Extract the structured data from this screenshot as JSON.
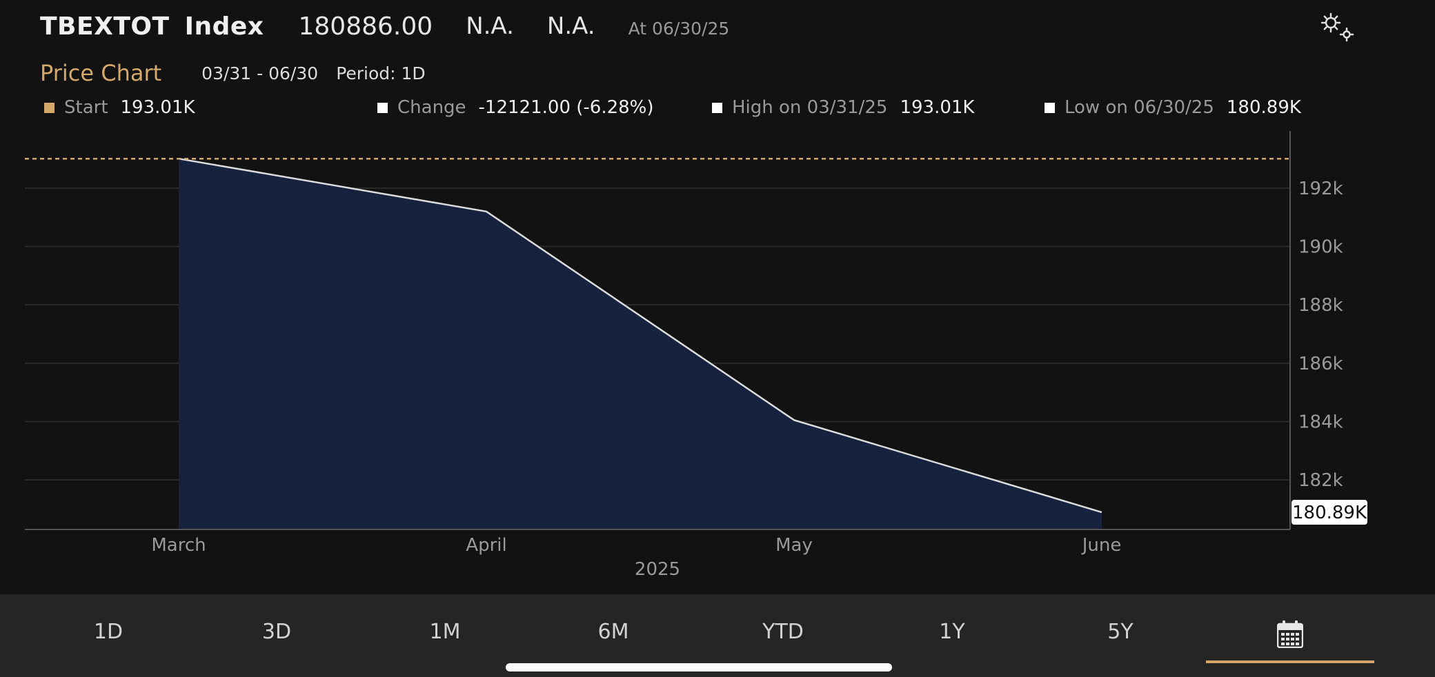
{
  "header": {
    "ticker": "TBEXTOT",
    "ticker_type": "Index",
    "price": "180886.00",
    "change": "N.A.",
    "change_pct": "N.A.",
    "as_of": "At 06/30/25"
  },
  "subheader": {
    "title": "Price Chart",
    "date_range": "03/31 - 06/30",
    "period": "Period: 1D"
  },
  "legend": {
    "start_label": "Start",
    "start_value": "193.01K",
    "change_label": "Change",
    "change_value": "-12121.00 (-6.28%)",
    "high_label": "High on 03/31/25",
    "high_value": "193.01K",
    "low_label": "Low on 06/30/25",
    "low_value": "180.89K"
  },
  "colors": {
    "accent": "#d4a86a",
    "area_fill": "#17223f",
    "line": "#dcdcdc",
    "background": "#121212",
    "tab_bar": "#252525"
  },
  "chart_data": {
    "type": "area",
    "x": [
      "March",
      "April",
      "May",
      "June"
    ],
    "y": [
      193.01,
      191.2,
      184.05,
      180.89
    ],
    "units": "K",
    "y_ticks": [
      "192k",
      "190k",
      "188k",
      "186k",
      "184k",
      "182k"
    ],
    "y_tick_values": [
      192,
      190,
      188,
      186,
      184,
      182
    ],
    "x_ticks": [
      "March",
      "April",
      "May",
      "June"
    ],
    "x_year_label": "2025",
    "ylim": [
      180.3,
      193.96
    ],
    "reference_line_value": 193.01,
    "last_value_label": "180.89K",
    "grid": true
  },
  "tabs": [
    {
      "label": "1D"
    },
    {
      "label": "3D"
    },
    {
      "label": "1M"
    },
    {
      "label": "6M"
    },
    {
      "label": "YTD"
    },
    {
      "label": "1Y"
    },
    {
      "label": "5Y"
    }
  ],
  "calendar_tab": {
    "icon": "calendar-icon",
    "selected": true
  }
}
